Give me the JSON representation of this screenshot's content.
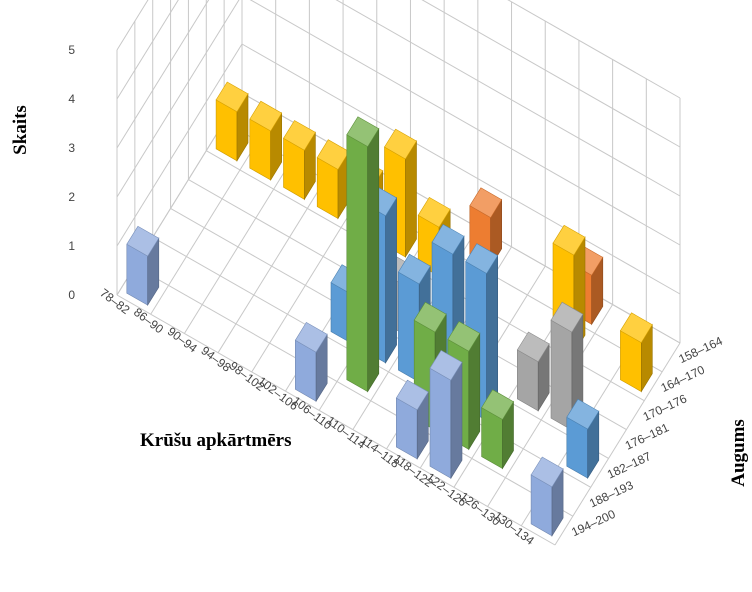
{
  "chart_data": {
    "type": "bar3d",
    "title": "",
    "zlabel": "Skaits",
    "xlabel": "Krūšu apkārtmērs",
    "ylabel": "Augums",
    "zlim": [
      0,
      5
    ],
    "z_ticks": [
      "0",
      "1",
      "2",
      "3",
      "4",
      "5"
    ],
    "x_categories": [
      "78–82",
      "86–90",
      "90–94",
      "94–98",
      "98–102",
      "102–106",
      "106–110",
      "110–114",
      "114–118",
      "118–122",
      "122–126",
      "126–130",
      "130–134"
    ],
    "y_categories": [
      "158–164",
      "164–170",
      "170–176",
      "176–181",
      "182–187",
      "188–193",
      "194–200"
    ],
    "grid": true,
    "colors": {
      "158–164": "#ed7d31",
      "164–170": "#ffc000",
      "170–176": "#4472c4",
      "176–181": "#a5a5a5",
      "182–187": "#5b9bd5",
      "188–193": "#70ad47",
      "194–200": "#8faadc"
    },
    "bars": [
      {
        "x": "78–82",
        "y": "164–170",
        "value": 1
      },
      {
        "x": "78–82",
        "y": "194–200",
        "value": 1
      },
      {
        "x": "86–90",
        "y": "164–170",
        "value": 1
      },
      {
        "x": "90–94",
        "y": "164–170",
        "value": 1
      },
      {
        "x": "94–98",
        "y": "164–170",
        "value": 1
      },
      {
        "x": "98–102",
        "y": "164–170",
        "value": 1
      },
      {
        "x": "102–106",
        "y": "164–170",
        "value": 2
      },
      {
        "x": "102–106",
        "y": "182–187",
        "value": 1
      },
      {
        "x": "102–106",
        "y": "194–200",
        "value": 1
      },
      {
        "x": "106–110",
        "y": "164–170",
        "value": 1
      },
      {
        "x": "106–110",
        "y": "176–181",
        "value": 1
      },
      {
        "x": "106–110",
        "y": "182–187",
        "value": 3
      },
      {
        "x": "106–110",
        "y": "188–193",
        "value": 5
      },
      {
        "x": "110–114",
        "y": "158–164",
        "value": 1
      },
      {
        "x": "110–114",
        "y": "182–187",
        "value": 2
      },
      {
        "x": "114–118",
        "y": "182–187",
        "value": 3
      },
      {
        "x": "114–118",
        "y": "188–193",
        "value": 2
      },
      {
        "x": "114–118",
        "y": "194–200",
        "value": 1
      },
      {
        "x": "118–122",
        "y": "182–187",
        "value": 3
      },
      {
        "x": "118–122",
        "y": "188–193",
        "value": 2
      },
      {
        "x": "118–122",
        "y": "194–200",
        "value": 2
      },
      {
        "x": "122–126",
        "y": "158–164",
        "value": 1
      },
      {
        "x": "122–126",
        "y": "164–170",
        "value": 2
      },
      {
        "x": "122–126",
        "y": "176–181",
        "value": 1
      },
      {
        "x": "122–126",
        "y": "188–193",
        "value": 1
      },
      {
        "x": "126–130",
        "y": "176–181",
        "value": 2
      },
      {
        "x": "130–134",
        "y": "164–170",
        "value": 1
      },
      {
        "x": "130–134",
        "y": "182–187",
        "value": 1
      },
      {
        "x": "130–134",
        "y": "194–200",
        "value": 1
      }
    ]
  }
}
